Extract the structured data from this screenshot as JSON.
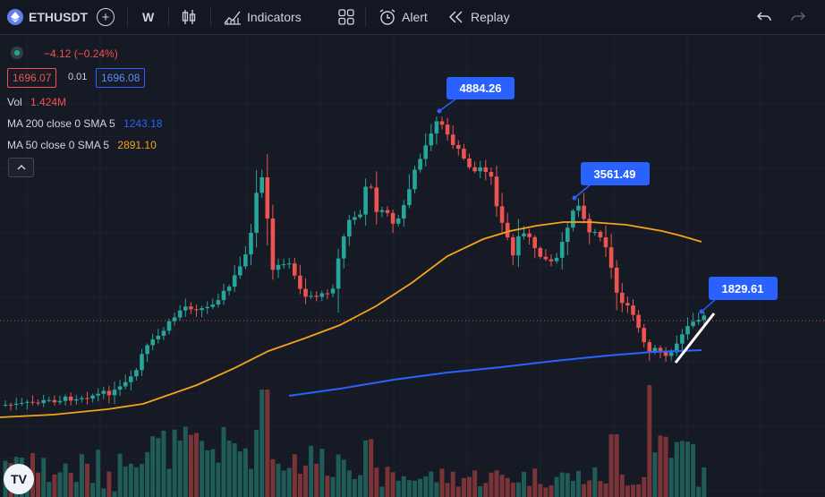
{
  "toolbar": {
    "symbol": "ETHUSDT",
    "interval": "W",
    "indicators_label": "Indicators",
    "alert_label": "Alert",
    "replay_label": "Replay"
  },
  "legend": {
    "change": "−4.12 (−0.24%)",
    "bid": "1696.07",
    "spread": "0.01",
    "ask": "1696.08",
    "vol_label": "Vol",
    "vol_value": "1.424M",
    "ma200_label": "MA 200 close 0 SMA 5",
    "ma200_value": "1243.18",
    "ma50_label": "MA 50 close 0 SMA 5",
    "ma50_value": "2891.10"
  },
  "colors": {
    "up": "#26a69a",
    "down": "#ef5350",
    "ma200": "#2962ff",
    "ma50": "#f7a21b",
    "label_bg": "#2962ff",
    "background": "#161a25"
  },
  "chart_data": {
    "type": "candlestick",
    "y_axis": "price",
    "annotations": [
      {
        "label": "4884.26",
        "price": 4884.26
      },
      {
        "label": "3561.49",
        "price": 3561.49
      },
      {
        "label": "1829.61",
        "price": 1829.61
      }
    ],
    "current_price": 1696.07,
    "ma200_last": 1243.18,
    "ma50_last": 2891.1,
    "volume_last": "1.424M"
  }
}
